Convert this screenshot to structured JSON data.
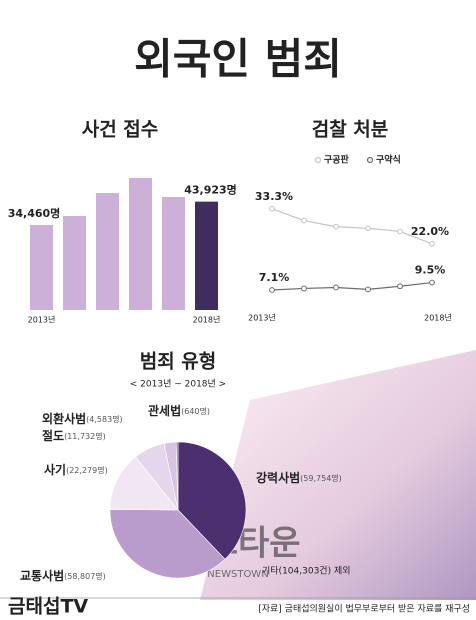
{
  "title": "외국인 범죄",
  "chart_data": [
    {
      "type": "bar",
      "title": "사건 접수",
      "categories": [
        "2013년",
        null,
        null,
        null,
        null,
        "2018년"
      ],
      "values": [
        34460,
        38100,
        47400,
        53500,
        45800,
        43923
      ],
      "value_labels": [
        "34,460명",
        null,
        null,
        null,
        null,
        "43,923명"
      ],
      "colors": [
        "#cdb0d8",
        "#cdb0d8",
        "#cdb0d8",
        "#cdb0d8",
        "#cdb0d8",
        "#3f2d5e"
      ]
    },
    {
      "type": "line",
      "title": "검찰 처분",
      "categories": [
        "2013년",
        null,
        null,
        null,
        null,
        "2018년"
      ],
      "series": [
        {
          "name": "구공판",
          "color": "#c4c4c4",
          "values": [
            33.3,
            29.5,
            27.5,
            27.0,
            26.0,
            22.0
          ],
          "value_labels": [
            "33.3%",
            null,
            null,
            null,
            null,
            "22.0%"
          ]
        },
        {
          "name": "구약식",
          "color": "#6b6b6b",
          "values": [
            7.1,
            7.6,
            7.9,
            7.3,
            8.3,
            9.5
          ],
          "value_labels": [
            "7.1%",
            null,
            null,
            null,
            null,
            "9.5%"
          ]
        }
      ]
    },
    {
      "type": "pie",
      "title": "범죄 유형",
      "subtitle": "< 2013년 ~ 2018년 >",
      "categories": [
        "강력사범",
        "교통사범",
        "사기",
        "절도",
        "외환사범",
        "관세법"
      ],
      "values": [
        59754,
        58807,
        22279,
        11732,
        4583,
        640
      ],
      "value_labels": [
        "(59,754명)",
        "(58,807명)",
        "(22,279명)",
        "(11,732명)",
        "(4,583명)",
        "(640명)"
      ],
      "colors": [
        "#4b2f6e",
        "#b99ccb",
        "#f1e6f4",
        "#e6d6ec",
        "#d9c3e2",
        "#8a6aa5"
      ],
      "annotation": "기타(104,303건) 제외"
    }
  ],
  "watermark": {
    "main": "뉴스타운",
    "sub": "NEWSTOWN"
  },
  "footer": {
    "logo": "금태섭TV",
    "source": "[자료] 금태섭의원실이 법무부로부터 받은 자료를 재구성"
  }
}
